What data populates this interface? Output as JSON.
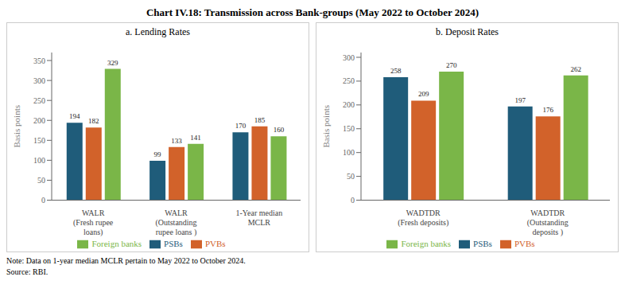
{
  "title": "Chart IV.18: Transmission across Bank-groups (May 2022 to October 2024)",
  "annotations": [
    "Note: Data on 1-year median MCLR pertain to May 2022 to October 2024.",
    "Source: RBI."
  ],
  "chart_data": [
    {
      "type": "bar",
      "subtitle": "a. Lending Rates",
      "ylabel": "Basis points",
      "categories": [
        "WALR\n(Fresh rupee\nloans)",
        "WALR\n(Outstanding\nrupee loans )",
        "1-Year median\nMCLR"
      ],
      "series": [
        {
          "name": "PSBs",
          "color": "#1f5c7a",
          "values": [
            194,
            99,
            170
          ]
        },
        {
          "name": "PVBs",
          "color": "#d2622a",
          "values": [
            182,
            133,
            185
          ]
        },
        {
          "name": "Foreign banks",
          "color": "#7ab648",
          "values": [
            329,
            141,
            160
          ]
        }
      ],
      "ylim": [
        0,
        370
      ],
      "yticks": [
        0,
        50,
        100,
        150,
        200,
        250,
        300,
        350
      ],
      "grid": false,
      "legend": "bottom",
      "data_labels": true
    },
    {
      "type": "bar",
      "subtitle": "b. Deposit Rates",
      "ylabel": "Basis points",
      "categories": [
        "WADTDR\n(Fresh deposits)",
        "WADTDR\n(Outstanding\ndeposits )"
      ],
      "series": [
        {
          "name": "PSBs",
          "color": "#1f5c7a",
          "values": [
            258,
            197
          ]
        },
        {
          "name": "PVBs",
          "color": "#d2622a",
          "values": [
            209,
            176
          ]
        },
        {
          "name": "Foreign banks",
          "color": "#7ab648",
          "values": [
            270,
            262
          ]
        }
      ],
      "ylim": [
        0,
        310
      ],
      "yticks": [
        0,
        50,
        100,
        150,
        200,
        250,
        300
      ],
      "grid": false,
      "legend": "bottom",
      "data_labels": true
    }
  ]
}
